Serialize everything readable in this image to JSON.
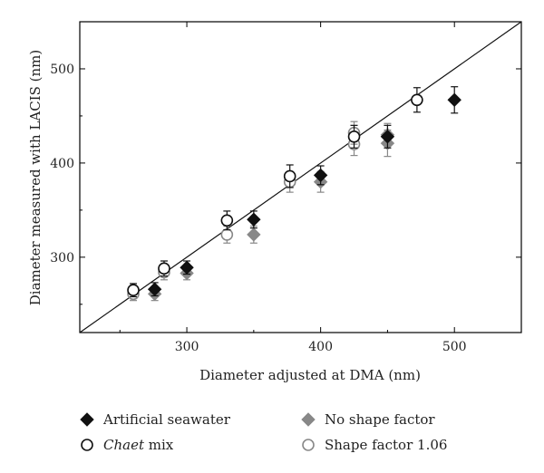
{
  "chart_data": {
    "type": "scatter",
    "title": "",
    "xlabel": "Diameter adjusted at DMA (nm)",
    "ylabel": "Diameter measured with LACIS (nm)",
    "xlim": [
      220,
      550
    ],
    "ylim": [
      220,
      550
    ],
    "xticks": [
      300,
      400,
      500
    ],
    "yticks": [
      300,
      400,
      500
    ],
    "grid": false,
    "legend_position": "bottom",
    "reference_line": {
      "from": [
        220,
        220
      ],
      "to": [
        550,
        550
      ]
    },
    "colors": {
      "axis": "#000000",
      "dark": "#111111",
      "gray": "#888888"
    },
    "series": [
      {
        "name": "Artificial seawater",
        "marker": "diamond-filled-dark",
        "points": [
          {
            "x": 276,
            "y": 266,
            "err": 7
          },
          {
            "x": 300,
            "y": 289,
            "err": 7
          },
          {
            "x": 350,
            "y": 340,
            "err": 9
          },
          {
            "x": 400,
            "y": 387,
            "err": 10
          },
          {
            "x": 450,
            "y": 428,
            "err": 12
          },
          {
            "x": 500,
            "y": 467,
            "err": 14
          }
        ]
      },
      {
        "name": "Chaet mix",
        "name_italic": "Chaet",
        "name_rest": " mix",
        "marker": "circle-open-dark",
        "points": [
          {
            "x": 260,
            "y": 265,
            "err": 7
          },
          {
            "x": 283,
            "y": 288,
            "err": 8
          },
          {
            "x": 330,
            "y": 339,
            "err": 10
          },
          {
            "x": 377,
            "y": 386,
            "err": 12
          },
          {
            "x": 425,
            "y": 428,
            "err": 12
          },
          {
            "x": 472,
            "y": 467,
            "err": 13
          }
        ]
      },
      {
        "name": "No shape factor",
        "marker": "diamond-filled-gray",
        "points": [
          {
            "x": 276,
            "y": 261,
            "err": 7
          },
          {
            "x": 300,
            "y": 283,
            "err": 7
          },
          {
            "x": 350,
            "y": 324,
            "err": 9
          },
          {
            "x": 400,
            "y": 380,
            "err": 11
          },
          {
            "x": 450,
            "y": 421,
            "err": 14
          },
          {
            "x": 450,
            "y": 430,
            "err": 12
          }
        ]
      },
      {
        "name": "Shape factor 1.06",
        "marker": "circle-open-gray",
        "points": [
          {
            "x": 260,
            "y": 261,
            "err": 7
          },
          {
            "x": 283,
            "y": 284,
            "err": 8
          },
          {
            "x": 330,
            "y": 324,
            "err": 9
          },
          {
            "x": 377,
            "y": 380,
            "err": 11
          },
          {
            "x": 425,
            "y": 420,
            "err": 12
          },
          {
            "x": 425,
            "y": 432,
            "err": 12
          }
        ]
      }
    ]
  }
}
